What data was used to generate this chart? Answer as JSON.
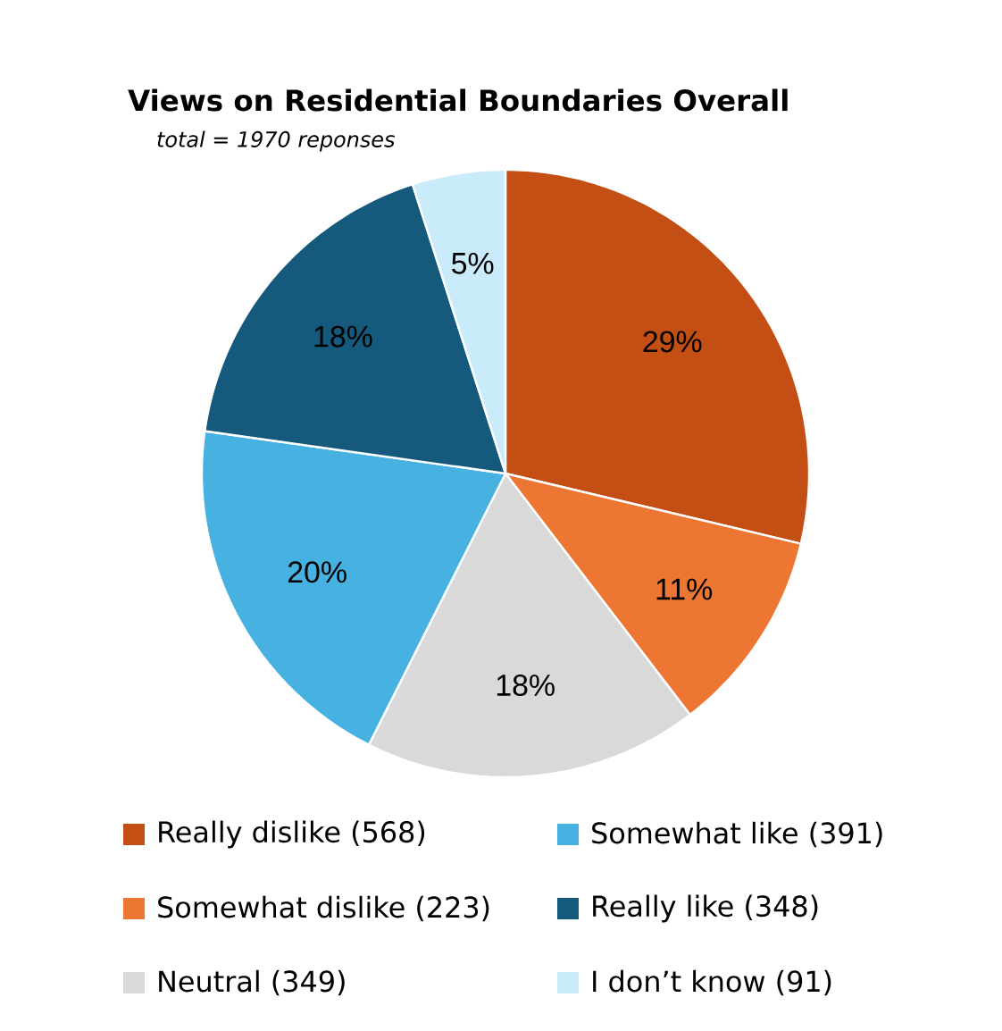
{
  "chart_data": {
    "type": "pie",
    "title": "Views on Residential Boundaries Overall",
    "subtitle": "total = 1970 reponses",
    "categories": [
      "Really dislike (568)",
      "Somewhat dislike (223)",
      "Neutral (349)",
      "Somewhat like (391)",
      "Really like (348)",
      "I don’t know (91)"
    ],
    "values": [
      29,
      11,
      18,
      20,
      18,
      5
    ],
    "value_labels": [
      "29%",
      "11%",
      "18%",
      "20%",
      "18%",
      "5%"
    ],
    "colors": [
      "#c34f15",
      "#ec7632",
      "#d9d9d9",
      "#47b1e1",
      "#155a7d",
      "#caecfa"
    ],
    "legend": "bottom"
  }
}
